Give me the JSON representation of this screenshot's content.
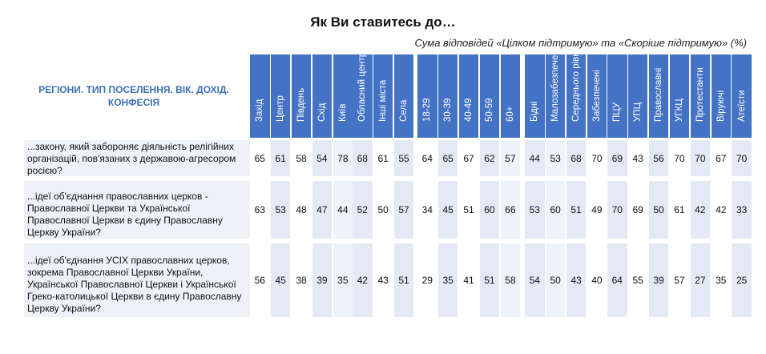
{
  "chart_data": {
    "type": "table",
    "title": "Як Ви ставитесь до…",
    "subtitle": "Сума відповідей «Цілком підтримую» та «Скоріше підтримую» (%)",
    "header_label": "РЕГІОНИ. ТИП ПОСЕЛЕННЯ. ВІК. ДОХІД. КОНФЕСІЯ",
    "columns": [
      "Захід",
      "Центр",
      "Південь",
      "Схід",
      "Київ",
      "Обласний центр",
      "Інші міста",
      "Села",
      "18-29",
      "30-39",
      "40-49",
      "50-59",
      "60+",
      "Бідні",
      "Малозабезпечені",
      "Середнього рівня",
      "Забезпечені",
      "ПЦУ",
      "УПЦ",
      "Православні",
      "УГКЦ",
      "Протестанти",
      "Віруючі",
      "Атеїсти"
    ],
    "rows": [
      {
        "label": "...закону, який забороняє діяльність релігійних організацій, пов'язаних з державою-агресором росією?",
        "values": [
          65,
          61,
          58,
          54,
          78,
          68,
          61,
          55,
          64,
          65,
          67,
          62,
          57,
          44,
          53,
          68,
          70,
          69,
          43,
          56,
          70,
          70,
          67,
          70
        ]
      },
      {
        "label": "...ідеї об'єднання православних церков - Православної Церкви  та Української Православної Церкви в єдину Православну Церкву України?",
        "values": [
          63,
          53,
          48,
          47,
          44,
          52,
          50,
          57,
          34,
          45,
          51,
          60,
          66,
          53,
          60,
          51,
          49,
          70,
          69,
          50,
          61,
          42,
          42,
          33
        ]
      },
      {
        "label": "...ідеї об'єднання УСІХ православних церков, зокрема Православної Церкви України, Української Православної Церкви і Української Греко-католицької Церкви в єдину Православну Церкву України?",
        "values": [
          56,
          45,
          38,
          39,
          35,
          42,
          43,
          51,
          29,
          35,
          41,
          51,
          58,
          54,
          50,
          43,
          40,
          64,
          55,
          39,
          57,
          27,
          35,
          25
        ]
      }
    ]
  }
}
